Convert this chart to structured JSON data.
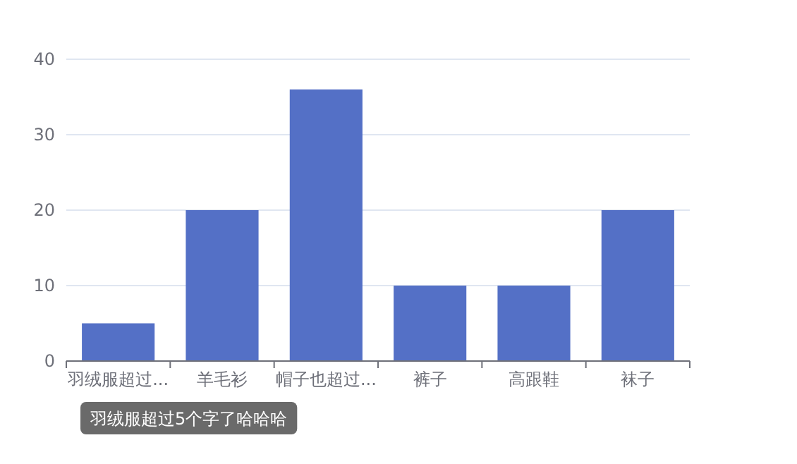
{
  "chart_data": {
    "type": "bar",
    "categories": [
      "羽绒服超过...",
      "羊毛衫",
      "帽子也超过...",
      "裤子",
      "高跟鞋",
      "袜子"
    ],
    "values": [
      5,
      20,
      36,
      10,
      10,
      20
    ],
    "color": "#5470c6",
    "ylim": [
      0,
      40
    ],
    "yticks": [
      0,
      10,
      20,
      30,
      40
    ],
    "grid": "y",
    "annotations": [
      "羽绒服超过5个字了哈哈哈"
    ]
  }
}
